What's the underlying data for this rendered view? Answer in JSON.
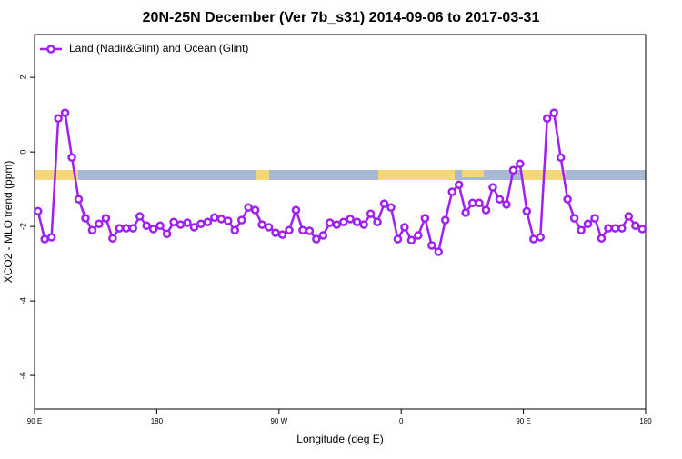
{
  "chart_data": {
    "type": "line",
    "title": "20N-25N December (Ver 7b_s31)   2014-09-06 to 2017-03-31",
    "x_label": "Longitude (deg E)",
    "y_label": "XCO2 - MLO trend (ppm)",
    "xlim": [
      90,
      540
    ],
    "xticks": [
      {
        "value": 90,
        "label": "90 E"
      },
      {
        "value": 180,
        "label": "180"
      },
      {
        "value": 270,
        "label": "90 W"
      },
      {
        "value": 360,
        "label": "0"
      },
      {
        "value": 450,
        "label": "90 E"
      },
      {
        "value": 540,
        "label": "180"
      }
    ],
    "ylim": [
      -6.9,
      3.15
    ],
    "yticks": [
      2,
      0,
      -2,
      -4,
      -6
    ],
    "legend": "top-left",
    "x": [
      92.5,
      97.5,
      102.5,
      107.5,
      112.5,
      117.5,
      122.5,
      127.5,
      132.5,
      137.5,
      142.5,
      147.5,
      152.5,
      157.5,
      162.5,
      167.5,
      172.5,
      177.5,
      182.5,
      187.5,
      192.5,
      197.5,
      202.5,
      207.5,
      212.5,
      217.5,
      222.5,
      227.5,
      232.5,
      237.5,
      242.5,
      247.5,
      252.5,
      257.5,
      262.5,
      267.5,
      272.5,
      277.5,
      282.5,
      287.5,
      292.5,
      297.5,
      302.5,
      307.5,
      312.5,
      317.5,
      322.5,
      327.5,
      332.5,
      337.5,
      342.5,
      347.5,
      352.5,
      357.5,
      362.5,
      367.5,
      372.5,
      377.5,
      382.5,
      387.5,
      392.5,
      397.5,
      402.5,
      407.5,
      412.5,
      417.5,
      422.5,
      427.5,
      432.5,
      437.5,
      442.5,
      447.5,
      452.5,
      457.5,
      462.5,
      467.5,
      472.5,
      477.5,
      482.5,
      487.5,
      492.5,
      497.5,
      502.5,
      507.5,
      512.5,
      517.5,
      522.5,
      527.5,
      532.5,
      537.5
    ],
    "series": [
      {
        "name": "Land (Nadir&Glint) and Ocean (Glint)",
        "color": "#a020f0",
        "values": [
          -1.59,
          -2.34,
          -2.29,
          0.9,
          1.05,
          -0.15,
          -1.27,
          -1.78,
          -2.1,
          -1.93,
          -1.78,
          -2.32,
          -2.05,
          -2.05,
          -2.05,
          -1.73,
          -1.98,
          -2.07,
          -1.98,
          -2.2,
          -1.88,
          -1.95,
          -1.9,
          -2.02,
          -1.93,
          -1.88,
          -1.76,
          -1.8,
          -1.85,
          -2.1,
          -1.83,
          -1.49,
          -1.56,
          -1.95,
          -2.02,
          -2.17,
          -2.22,
          -2.1,
          -1.56,
          -2.1,
          -2.12,
          -2.34,
          -2.24,
          -1.9,
          -1.95,
          -1.88,
          -1.8,
          -1.88,
          -1.95,
          -1.66,
          -1.88,
          -1.39,
          -1.49,
          -2.34,
          -2.02,
          -2.37,
          -2.24,
          -1.78,
          -2.51,
          -2.68,
          -1.83,
          -1.07,
          -0.88,
          -1.63,
          -1.37,
          -1.37,
          -1.56,
          -0.95,
          -1.27,
          -1.41,
          -0.49,
          -0.32,
          -1.59,
          -2.34,
          -2.29,
          0.9,
          1.05,
          -0.15,
          -1.27,
          -1.78,
          -2.1,
          -1.93,
          -1.78,
          -2.32,
          -2.05,
          -2.05,
          -2.05,
          -1.73,
          -1.98,
          -2.07
        ]
      }
    ]
  }
}
